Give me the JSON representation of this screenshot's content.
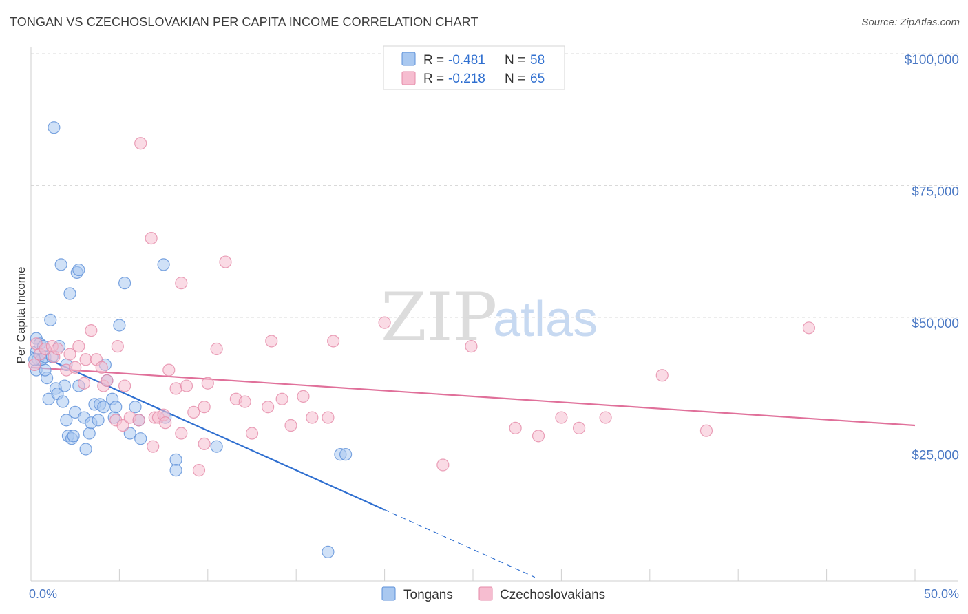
{
  "title": "TONGAN VS CZECHOSLOVAKIAN PER CAPITA INCOME CORRELATION CHART",
  "source": "Source: ZipAtlas.com",
  "colors": {
    "blue_fill": "#a9c8f0",
    "blue_stroke": "#5b8fd8",
    "blue_line": "#2f6fd0",
    "pink_fill": "#f6bdd0",
    "pink_stroke": "#e58aa8",
    "pink_line": "#e0709a"
  },
  "watermark": {
    "zip": "ZIP",
    "atlas": "atlas"
  },
  "chart_data": {
    "type": "scatter",
    "title": "TONGAN VS CZECHOSLOVAKIAN PER CAPITA INCOME CORRELATION CHART",
    "ylabel": "Per Capita Income",
    "xlim": [
      0,
      50
    ],
    "ylim": [
      0,
      105000
    ],
    "x_tick_labels": [
      "0.0%",
      "50.0%"
    ],
    "y_ticks": [
      {
        "value": 25000,
        "label": "$25,000"
      },
      {
        "value": 50000,
        "label": "$50,000"
      },
      {
        "value": 75000,
        "label": "$75,000"
      },
      {
        "value": 100000,
        "label": "$100,000"
      }
    ],
    "legend": [
      {
        "r_label": "R =",
        "r_value": "-0.481",
        "n_label": "N =",
        "n_value": "58"
      },
      {
        "r_label": "R =",
        "r_value": "-0.218",
        "n_label": "N =",
        "n_value": "65"
      }
    ],
    "series": [
      {
        "name": "Tongans",
        "color": "#a9c8f0",
        "trend": {
          "x0": 0,
          "y0": 43500,
          "x1": 20,
          "y1": 13500,
          "dash_x1": 28.5,
          "dash_y1": 700
        },
        "points": [
          [
            0.3,
            46000
          ],
          [
            0.3,
            43500
          ],
          [
            0.3,
            40000
          ],
          [
            0.4,
            42000
          ],
          [
            0.5,
            45000
          ],
          [
            0.6,
            42000
          ],
          [
            0.7,
            44500
          ],
          [
            0.8,
            42500
          ],
          [
            0.9,
            38500
          ],
          [
            0.8,
            40000
          ],
          [
            1.0,
            34500
          ],
          [
            1.1,
            49500
          ],
          [
            1.3,
            86000
          ],
          [
            1.4,
            36500
          ],
          [
            1.5,
            35500
          ],
          [
            1.6,
            44500
          ],
          [
            1.7,
            60000
          ],
          [
            1.8,
            34000
          ],
          [
            1.9,
            37000
          ],
          [
            2.0,
            41000
          ],
          [
            2.0,
            30500
          ],
          [
            2.1,
            27500
          ],
          [
            2.2,
            54500
          ],
          [
            2.3,
            27000
          ],
          [
            2.4,
            27500
          ],
          [
            2.5,
            32000
          ],
          [
            2.6,
            58500
          ],
          [
            2.7,
            37000
          ],
          [
            2.7,
            59000
          ],
          [
            3.0,
            31000
          ],
          [
            3.1,
            25000
          ],
          [
            3.3,
            28000
          ],
          [
            3.4,
            30000
          ],
          [
            3.6,
            33500
          ],
          [
            3.8,
            30500
          ],
          [
            3.9,
            33500
          ],
          [
            4.1,
            33000
          ],
          [
            4.2,
            41000
          ],
          [
            4.3,
            38000
          ],
          [
            4.6,
            34500
          ],
          [
            4.7,
            31000
          ],
          [
            4.8,
            33000
          ],
          [
            5.0,
            48500
          ],
          [
            5.3,
            56500
          ],
          [
            5.6,
            28000
          ],
          [
            5.9,
            33000
          ],
          [
            6.1,
            30500
          ],
          [
            6.2,
            27000
          ],
          [
            7.5,
            60000
          ],
          [
            7.6,
            31000
          ],
          [
            8.2,
            23000
          ],
          [
            8.2,
            21000
          ],
          [
            10.5,
            25500
          ],
          [
            16.8,
            5500
          ],
          [
            17.5,
            24000
          ],
          [
            17.8,
            24000
          ],
          [
            0.2,
            42000
          ],
          [
            1.2,
            42500
          ]
        ]
      },
      {
        "name": "Czechoslovakians",
        "color": "#f6bdd0",
        "trend": {
          "x0": 0,
          "y0": 40500,
          "x1": 50,
          "y1": 29500
        },
        "points": [
          [
            0.2,
            41000
          ],
          [
            0.3,
            45000
          ],
          [
            0.5,
            43000
          ],
          [
            0.8,
            44000
          ],
          [
            1.2,
            44500
          ],
          [
            1.3,
            42500
          ],
          [
            1.5,
            44000
          ],
          [
            2.0,
            40000
          ],
          [
            2.2,
            43000
          ],
          [
            2.5,
            40500
          ],
          [
            2.7,
            44500
          ],
          [
            3.0,
            37500
          ],
          [
            3.1,
            42000
          ],
          [
            3.4,
            47500
          ],
          [
            3.7,
            42000
          ],
          [
            4.0,
            40500
          ],
          [
            4.1,
            37000
          ],
          [
            4.3,
            38000
          ],
          [
            4.8,
            30500
          ],
          [
            4.9,
            44500
          ],
          [
            5.2,
            29500
          ],
          [
            5.3,
            37000
          ],
          [
            5.6,
            31000
          ],
          [
            6.1,
            30500
          ],
          [
            6.2,
            83000
          ],
          [
            6.8,
            65000
          ],
          [
            6.9,
            25500
          ],
          [
            7.0,
            31000
          ],
          [
            7.2,
            31000
          ],
          [
            7.5,
            31500
          ],
          [
            7.6,
            30000
          ],
          [
            7.8,
            40000
          ],
          [
            8.2,
            36500
          ],
          [
            8.5,
            56500
          ],
          [
            8.5,
            28000
          ],
          [
            8.8,
            37000
          ],
          [
            9.2,
            32000
          ],
          [
            9.5,
            21000
          ],
          [
            9.8,
            33000
          ],
          [
            9.8,
            26000
          ],
          [
            10.0,
            37500
          ],
          [
            10.5,
            44000
          ],
          [
            11.0,
            60500
          ],
          [
            11.6,
            34500
          ],
          [
            12.1,
            34000
          ],
          [
            12.5,
            28000
          ],
          [
            13.4,
            33000
          ],
          [
            13.6,
            45500
          ],
          [
            14.2,
            34500
          ],
          [
            14.7,
            29500
          ],
          [
            15.4,
            35000
          ],
          [
            15.9,
            31000
          ],
          [
            16.8,
            31000
          ],
          [
            17.1,
            45500
          ],
          [
            20.0,
            49000
          ],
          [
            23.3,
            22000
          ],
          [
            24.9,
            44500
          ],
          [
            27.4,
            29000
          ],
          [
            28.7,
            27500
          ],
          [
            30.0,
            31000
          ],
          [
            31.0,
            29000
          ],
          [
            32.5,
            31000
          ],
          [
            35.7,
            39000
          ],
          [
            38.2,
            28500
          ],
          [
            44.0,
            48000
          ]
        ]
      }
    ]
  }
}
